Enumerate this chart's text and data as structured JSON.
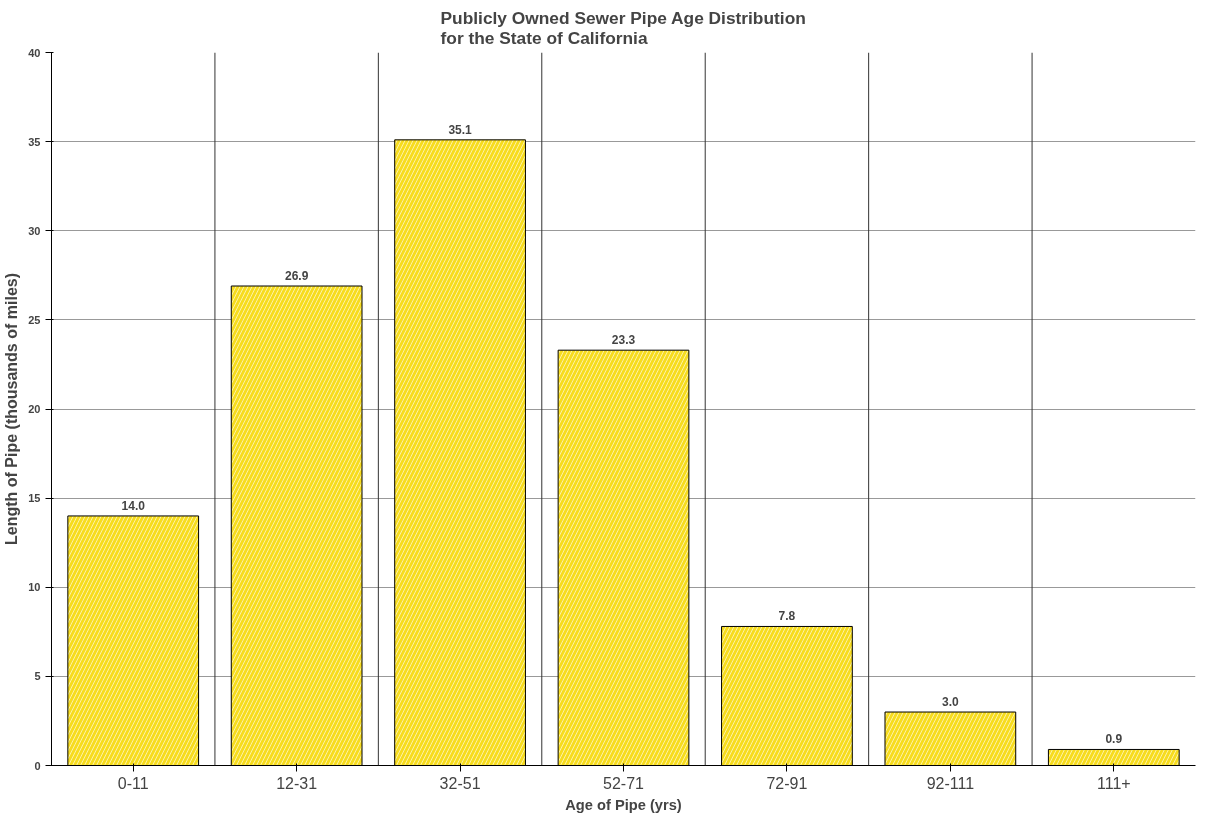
{
  "chart_data": {
    "type": "bar",
    "title": "Publicly Owned Sewer Pipe Age Distribution\nfor the State of California",
    "xlabel": "Age of Pipe (yrs)",
    "ylabel": "Length of Pipe (thousands of miles)",
    "categories": [
      "0-11",
      "12-31",
      "32-51",
      "52-71",
      "72-91",
      "92-111",
      "111+"
    ],
    "values": [
      14.0,
      26.9,
      35.1,
      23.3,
      7.8,
      3.0,
      0.9
    ],
    "value_labels": [
      "14.0",
      "26.9",
      "35.1",
      "23.3",
      "7.8",
      "3.0",
      "0.9"
    ],
    "color": "#f7dc1e",
    "ylim": [
      0,
      40
    ],
    "yticks": [
      0,
      5,
      10,
      15,
      20,
      25,
      30,
      35,
      40
    ],
    "grid": true
  }
}
